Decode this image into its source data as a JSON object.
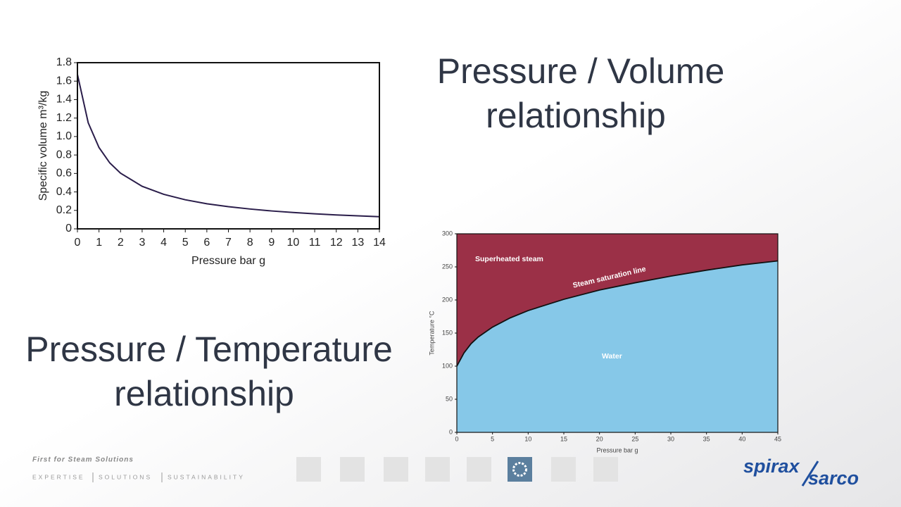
{
  "slide": {
    "heading_volume": [
      "Pressure / Volume",
      "relationship"
    ],
    "heading_temperature": [
      "Pressure / Temperature",
      "relationship"
    ],
    "tagline": "First for Steam Solutions",
    "pillars": [
      "EXPERTISE",
      "SOLUTIONS",
      "SUSTAINABILITY"
    ],
    "logo": [
      "spirax",
      "sarco"
    ]
  },
  "chart_data": [
    {
      "type": "line",
      "x_label": "Pressure bar g",
      "y_label": "Specific volume m³/kg",
      "x": [
        0,
        0.5,
        1,
        1.5,
        2,
        3,
        4,
        5,
        6,
        7,
        8,
        9,
        10,
        11,
        12,
        13,
        14
      ],
      "series": [
        {
          "color": "#2a1d4a",
          "values": [
            1.673,
            1.149,
            0.881,
            0.714,
            0.603,
            0.461,
            0.374,
            0.315,
            0.272,
            0.24,
            0.215,
            0.194,
            0.177,
            0.163,
            0.151,
            0.141,
            0.132
          ]
        }
      ],
      "xlim": [
        0,
        14
      ],
      "ylim": [
        0,
        1.8
      ],
      "xticks": [
        0,
        1,
        2,
        3,
        4,
        5,
        6,
        7,
        8,
        9,
        10,
        11,
        12,
        13,
        14
      ],
      "yticks": [
        0,
        0.2,
        0.4,
        0.6,
        0.8,
        {
          "value": 1,
          "label": "1.0"
        },
        1.2,
        1.4,
        1.6,
        1.8
      ]
    },
    {
      "type": "area",
      "x_label": "Pressure bar g",
      "y_label": "Temperature °C",
      "x": [
        0,
        1,
        2,
        3,
        5,
        7.5,
        10,
        15,
        20,
        25,
        30,
        35,
        40,
        45
      ],
      "series": [
        {
          "name": "Steam saturation line",
          "color": "#86c8e8",
          "values": [
            100,
            120,
            134,
            144,
            159,
            173,
            184,
            201,
            215,
            226,
            236,
            245,
            253,
            259
          ]
        }
      ],
      "regions": [
        {
          "label": "Superheated steam",
          "color": "#9b3047"
        },
        {
          "label": "Water",
          "color": "#86c8e8"
        }
      ],
      "xlim": [
        0,
        45
      ],
      "ylim": [
        0,
        300
      ],
      "xticks": [
        0,
        5,
        10,
        15,
        20,
        25,
        30,
        35,
        40,
        45
      ],
      "yticks": [
        0,
        50,
        100,
        150,
        200,
        250,
        300
      ]
    }
  ]
}
